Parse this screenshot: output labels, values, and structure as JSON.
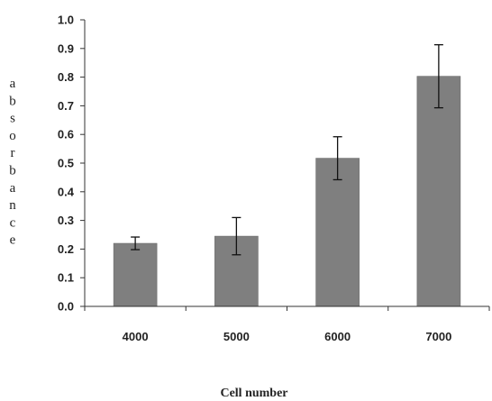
{
  "chart_data": {
    "type": "bar",
    "title": "",
    "xlabel": "Cell number",
    "ylabel": "absorbance",
    "categories": [
      "4000",
      "5000",
      "6000",
      "7000"
    ],
    "series": [
      {
        "values": [
          0.22,
          0.245,
          0.517,
          0.803
        ],
        "errors": [
          0.022,
          0.065,
          0.075,
          0.11
        ]
      }
    ],
    "ylim": [
      0.0,
      1.0
    ],
    "yticks": [
      "0.0",
      "0.1",
      "0.2",
      "0.3",
      "0.4",
      "0.5",
      "0.6",
      "0.7",
      "0.8",
      "0.9",
      "1.0"
    ],
    "grid": false,
    "legend": "none",
    "colors": {
      "bar": "#7f7f7f",
      "bar_edge": "#6a6a6a",
      "axis": "#333333",
      "text": "#222222"
    }
  }
}
